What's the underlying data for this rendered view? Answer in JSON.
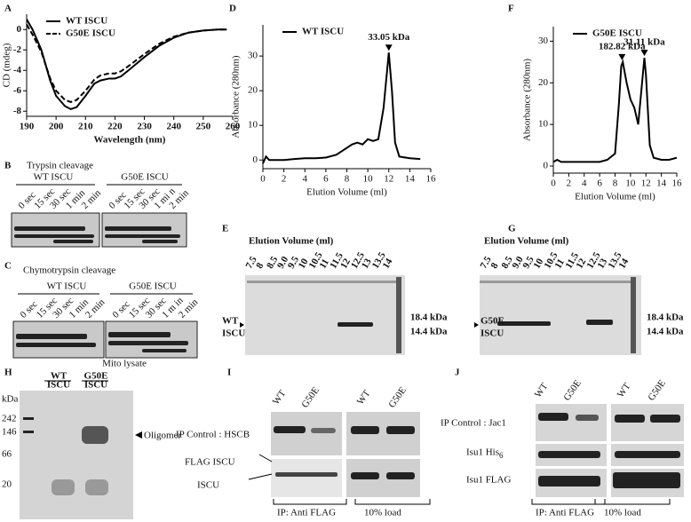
{
  "chart_data": [
    {
      "type": "line",
      "panel_label": "A",
      "xlabel": "Wavelength (nm)",
      "ylabel": "CD (mdeg)",
      "x": [
        190,
        192,
        195,
        198,
        200,
        203,
        205,
        207,
        210,
        213,
        215,
        218,
        220,
        222,
        225,
        230,
        235,
        240,
        245,
        250,
        255,
        258
      ],
      "series": [
        {
          "name": "WT ISCU",
          "color": "#000000",
          "style": "solid",
          "values": [
            1,
            0,
            -2,
            -5,
            -6.5,
            -7.5,
            -7.8,
            -7.6,
            -6.5,
            -5.3,
            -5,
            -4.8,
            -4.8,
            -4.6,
            -3.9,
            -2.7,
            -1.6,
            -0.8,
            -0.3,
            -0.1,
            0,
            0
          ]
        },
        {
          "name": "G50E ISCU",
          "color": "#000000",
          "style": "dashed",
          "values": [
            0.5,
            -0.5,
            -2.2,
            -4.8,
            -6,
            -6.9,
            -7.1,
            -6.9,
            -6,
            -4.9,
            -4.5,
            -4.3,
            -4.3,
            -4.1,
            -3.5,
            -2.4,
            -1.4,
            -0.7,
            -0.3,
            -0.1,
            0,
            0
          ]
        }
      ],
      "xlim": [
        190,
        260
      ],
      "ylim": [
        -8.5,
        1.5
      ],
      "xticks": [
        190,
        200,
        210,
        220,
        230,
        240,
        250,
        260
      ],
      "yticks": [
        -8,
        -6,
        -4,
        -2,
        0
      ],
      "legend": "upper left"
    },
    {
      "type": "line",
      "panel_label": "D",
      "xlabel": "Elution Volume (ml)",
      "ylabel": "Absorbance (280nm)",
      "x": [
        0,
        0.3,
        0.6,
        1,
        2,
        3,
        4,
        5,
        6,
        7,
        8,
        8.5,
        9,
        9.5,
        10,
        10.5,
        11,
        11.5,
        12,
        12.3,
        12.6,
        13,
        14,
        15
      ],
      "series": [
        {
          "name": "WT ISCU",
          "color": "#000000",
          "style": "solid",
          "values": [
            -1,
            1,
            0,
            0,
            0,
            0.3,
            0.5,
            0.5,
            0.7,
            1.5,
            3.5,
            4.5,
            5,
            4.5,
            6,
            5.5,
            6,
            15,
            31,
            20,
            5,
            1,
            0.5,
            0.3
          ]
        }
      ],
      "annotations": [
        {
          "text": "33.05 kDa",
          "x": 12,
          "y": 31
        }
      ],
      "xlim": [
        0,
        16
      ],
      "ylim": [
        -2.5,
        39
      ],
      "xticks": [
        0,
        2,
        4,
        6,
        8,
        10,
        12,
        14,
        16
      ],
      "yticks": [
        0,
        10,
        20,
        30
      ],
      "legend": "upper left"
    },
    {
      "type": "line",
      "panel_label": "F",
      "xlabel": "Elution Volume (ml)",
      "ylabel": "Absorbance (280nm)",
      "x": [
        0,
        0.5,
        1,
        2,
        3,
        4,
        5,
        6,
        7,
        8,
        8.5,
        8.8,
        9,
        9.5,
        10,
        10.5,
        11,
        11.5,
        11.8,
        12,
        12.5,
        13,
        14,
        15,
        16
      ],
      "series": [
        {
          "name": "G50E ISCU",
          "color": "#000000",
          "style": "solid",
          "values": [
            1,
            1.5,
            1,
            1,
            1,
            1,
            1,
            1,
            1.5,
            3,
            15,
            24,
            25,
            20,
            16,
            14,
            10,
            20,
            26,
            22,
            5,
            2,
            1.5,
            1.5,
            2
          ]
        }
      ],
      "annotations": [
        {
          "text": "182.82 kDa",
          "x": 8.9,
          "y": 25
        },
        {
          "text": "31.11 kDa",
          "x": 11.8,
          "y": 26
        }
      ],
      "xlim": [
        0,
        16
      ],
      "ylim": [
        -1.7,
        33.5
      ],
      "xticks": [
        0,
        2,
        4,
        6,
        8,
        10,
        12,
        14,
        16
      ],
      "yticks": [
        0,
        10,
        20,
        30
      ],
      "legend": "upper left"
    }
  ],
  "panels": {
    "B": {
      "letter": "B",
      "title": "Trypsin cleavage",
      "groups": [
        "WT ISCU",
        "G50E  ISCU"
      ],
      "lanes": [
        "0 sec",
        "15 sec",
        "30 sec",
        "1 min",
        "2 min",
        "0 sec",
        "15 sec",
        "30 sec",
        "1 mi n",
        "2 min"
      ]
    },
    "C": {
      "letter": "C",
      "title": "Chymotrypsin cleavage",
      "groups": [
        "WT ISCU",
        "G50E  ISCU"
      ],
      "lanes": [
        "0 sec",
        "15 sec",
        "30 sec",
        "1 min",
        "2 min",
        "0 sec",
        "15 sec",
        "30 sec",
        "1 m in",
        "2 min"
      ]
    },
    "E": {
      "letter": "E",
      "title": "Elution Volume (ml)",
      "lanes": [
        "7.5",
        "8",
        "8.5",
        "9.0",
        "9.5",
        "10",
        "10.5",
        "11",
        "11.5",
        "12",
        "12.5",
        "13",
        "13.5",
        "14"
      ],
      "left": [
        "WT",
        "ISCU"
      ],
      "markers": [
        "18.4 kDa",
        "14.4 kDa"
      ]
    },
    "G": {
      "letter": "G",
      "title": "Elution Volume (ml)",
      "lanes": [
        "7.5",
        "8",
        "8.5",
        "9.0",
        "9.5",
        "10",
        "10.5",
        "11",
        "11.5",
        "12",
        "12.5",
        "13",
        "13.5",
        "14"
      ],
      "left": [
        "G50E",
        "ISCU"
      ],
      "markers": [
        "18.4 kDa",
        "14.4 kDa"
      ]
    },
    "H": {
      "letter": "H",
      "title": "Mito lysate",
      "groups": [
        [
          "WT",
          "ISCU"
        ],
        [
          "G50E",
          "ISCU"
        ]
      ],
      "unit": "kDa",
      "markers": [
        "242",
        "146",
        "66",
        "20"
      ],
      "arrow_label": "Oligomer"
    },
    "I": {
      "letter": "I",
      "columns": [
        "WT",
        "G50E",
        "WT",
        "G50E"
      ],
      "rows": [
        "IP Control : HSCB",
        "FLAG ISCU",
        "ISCU"
      ],
      "footer": [
        "IP: Anti FLAG",
        "10% load"
      ]
    },
    "J": {
      "letter": "J",
      "columns": [
        "WT",
        "G50E",
        "WT",
        "G50E"
      ],
      "rows": [
        {
          "text": "IP Control : Jac1"
        },
        {
          "text": "Isu1 His",
          "sub": "6"
        },
        {
          "text": "Isu1 FLAG"
        }
      ],
      "footer": [
        "IP: Anti FLAG",
        "10% load"
      ]
    }
  }
}
